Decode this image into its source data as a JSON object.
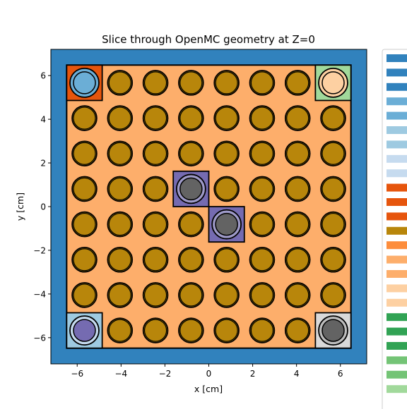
{
  "chart_data": {
    "type": "heatmap",
    "title": "Slice through OpenMC geometry at Z=0",
    "xlabel": "x [cm]",
    "ylabel": "y [cm]",
    "xlim": [
      -7.2,
      7.2
    ],
    "ylim": [
      -7.2,
      7.2
    ],
    "xticks": [
      -6,
      -4,
      -2,
      0,
      2,
      4,
      6
    ],
    "yticks": [
      -6,
      -4,
      -2,
      0,
      2,
      4,
      6
    ],
    "xtick_labels": [
      "−6",
      "−4",
      "−2",
      "0",
      "2",
      "4",
      "6"
    ],
    "ytick_labels": [
      "−6",
      "−4",
      "−2",
      "0",
      "2",
      "4",
      "6"
    ],
    "assembly_half_width": 6.48,
    "lattice_pitch": 1.62,
    "pin_outer_radius": 0.56,
    "pin_inner_radius": 0.5,
    "background_color": "#3182bd",
    "moderator_color": "#fdae6b",
    "pin_color": "#b8860b",
    "outline_color": "#000000",
    "pins": [
      {
        "x": -5.67,
        "y": 5.67,
        "cell": "#e6550d",
        "ring": "#6baed6",
        "core": "#6baed6"
      },
      {
        "x": 5.67,
        "y": 5.67,
        "cell": "#a1d99b",
        "ring": "#fdd0a2",
        "core": "#fdd0a2"
      },
      {
        "x": -5.67,
        "y": -5.67,
        "cell": "#9ecae1",
        "ring": "#c6dbef",
        "core": "#756bb1"
      },
      {
        "x": 5.67,
        "y": -5.67,
        "cell": "#d9d9d9",
        "ring": "#bdbdbd",
        "core": "#636363"
      },
      {
        "x": -0.81,
        "y": 0.81,
        "cell": "#756bb1",
        "ring": "#9e9ac8",
        "core": "#636363"
      },
      {
        "x": 0.81,
        "y": -0.81,
        "cell": "#756bb1",
        "ring": "#9e9ac8",
        "core": "#636363"
      }
    ],
    "legend_colors": [
      "#3182bd",
      "#3182bd",
      "#3182bd",
      "#6baed6",
      "#6baed6",
      "#9ecae1",
      "#9ecae1",
      "#c6dbef",
      "#c6dbef",
      "#e6550d",
      "#e6550d",
      "#e6550d",
      "#b8860b",
      "#fd8d3c",
      "#fdae6b",
      "#fdae6b",
      "#fdd0a2",
      "#fdd0a2",
      "#31a354",
      "#31a354",
      "#31a354",
      "#74c476",
      "#74c476",
      "#a1d99b"
    ]
  }
}
